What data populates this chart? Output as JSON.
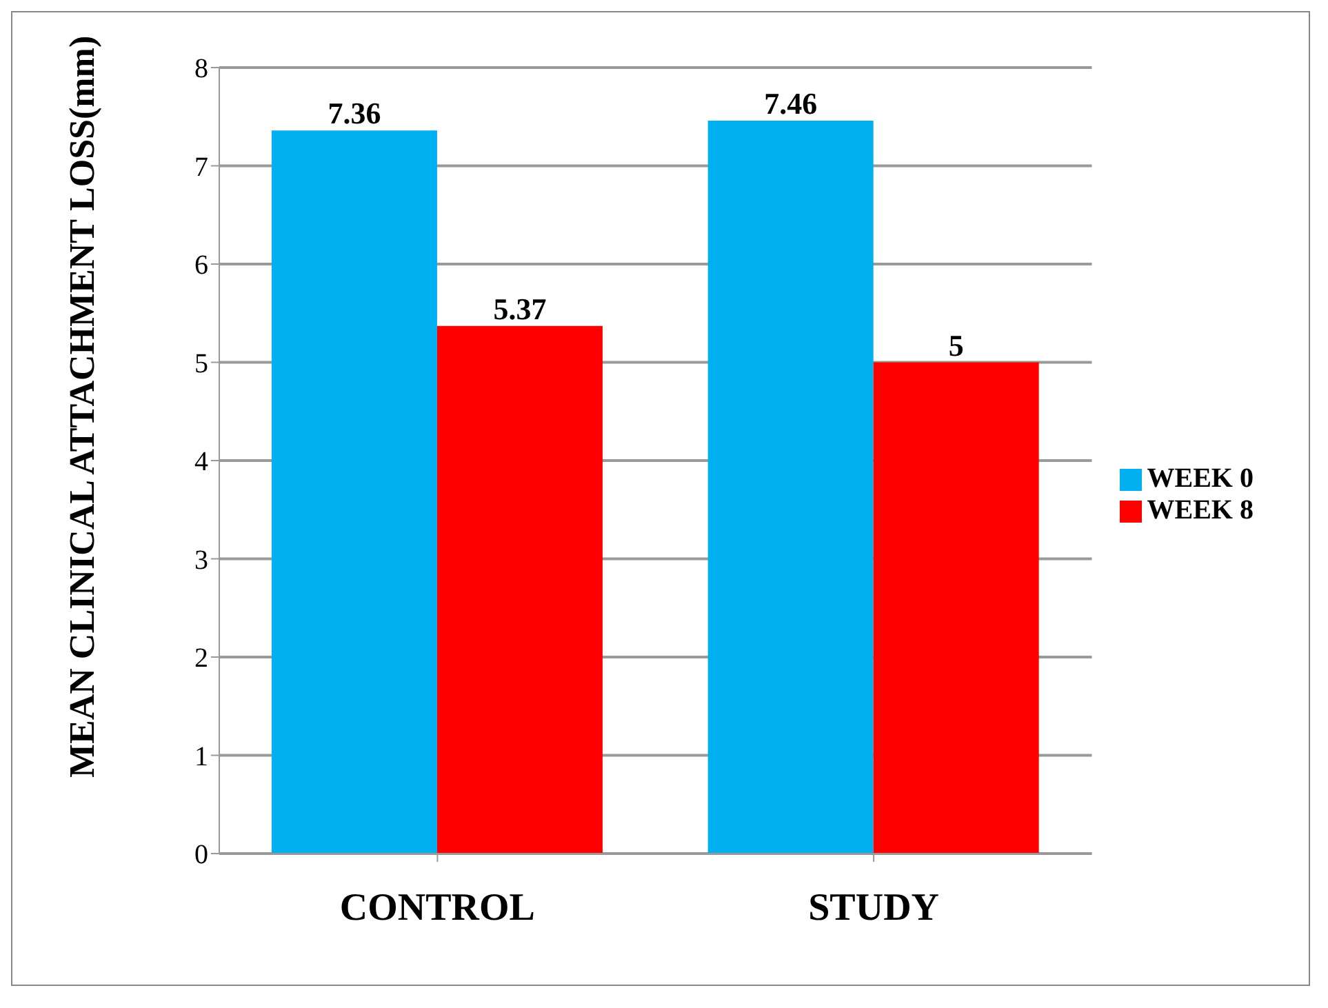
{
  "chart_data": {
    "type": "bar",
    "ylabel": "MEAN CLINICAL ATTACHMENT LOSS(mm)",
    "categories": [
      "CONTROL",
      "STUDY"
    ],
    "series": [
      {
        "name": "WEEK 0",
        "color": "#00b0f0",
        "values": [
          7.36,
          7.46
        ]
      },
      {
        "name": "WEEK 8",
        "color": "#ff0000",
        "values": [
          5.37,
          5
        ]
      }
    ],
    "ylim": [
      0,
      8
    ],
    "yticks": [
      0,
      1,
      2,
      3,
      4,
      5,
      6,
      7,
      8
    ],
    "grid": "y",
    "legend": "right",
    "data_labels": true
  }
}
